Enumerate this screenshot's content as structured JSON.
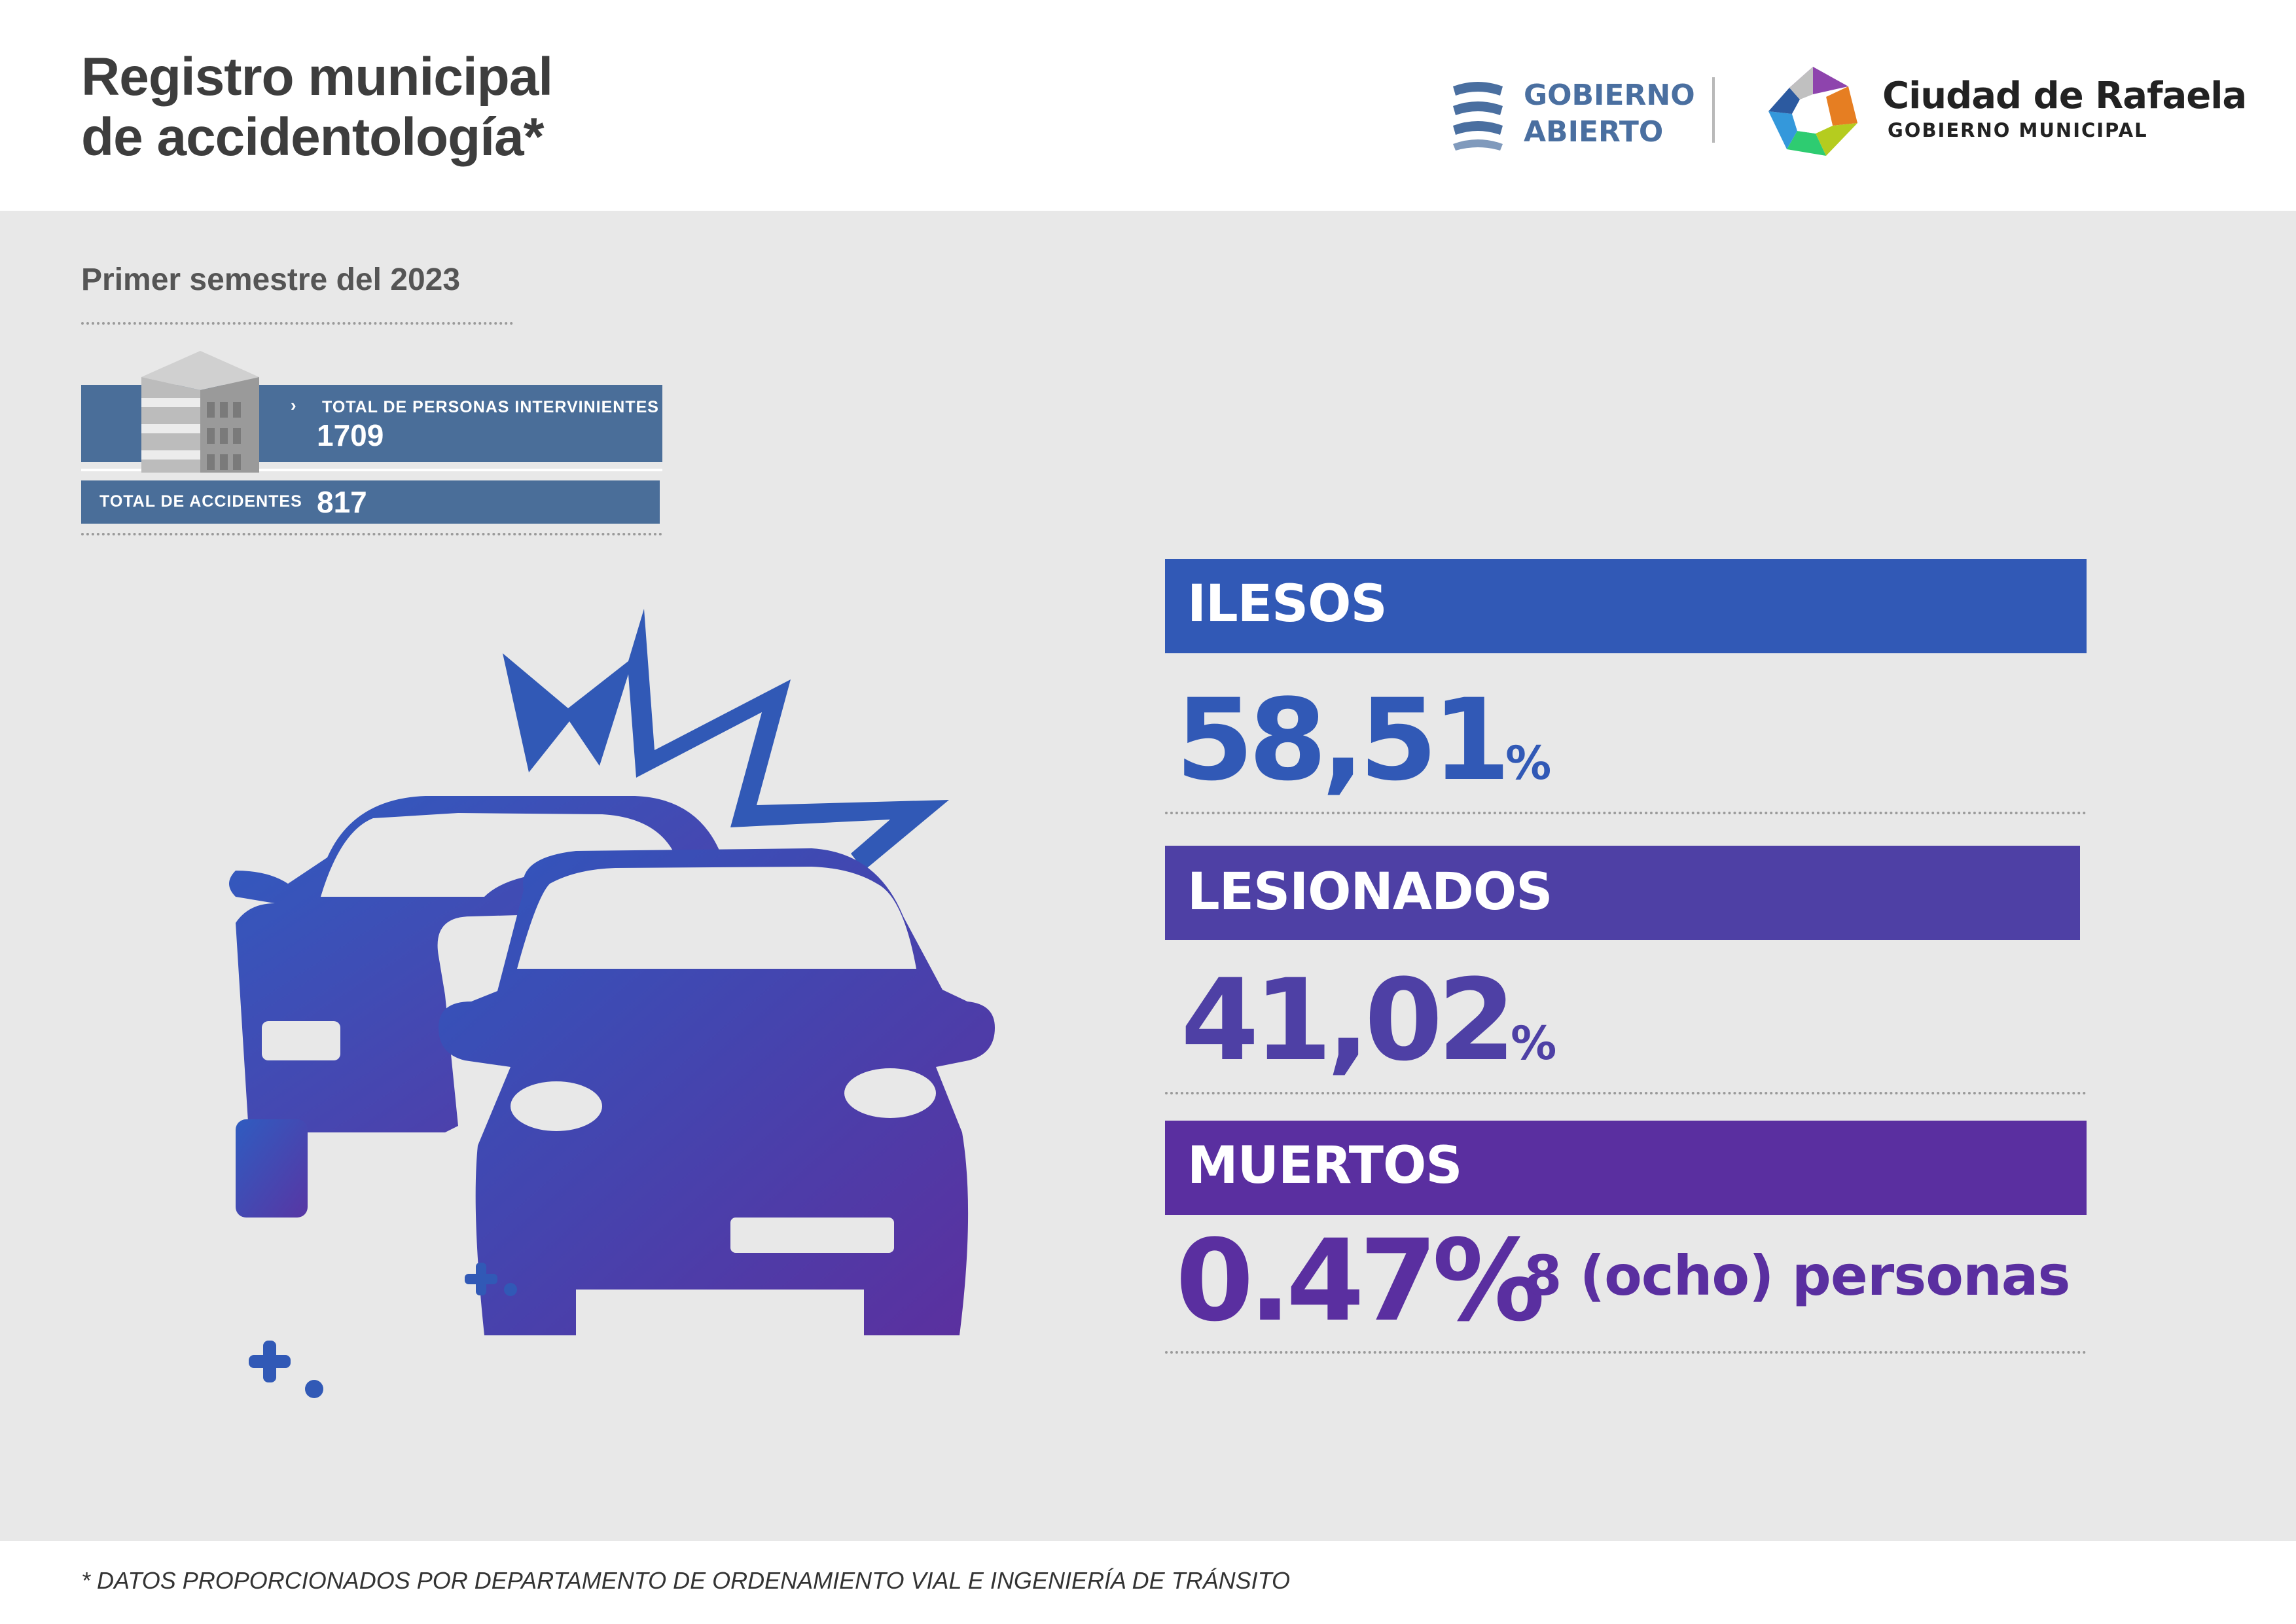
{
  "header": {
    "title_line1": "Registro municipal",
    "title_line2": "de accidentología*",
    "gobierno_abierto_line1": "GOBIERNO",
    "gobierno_abierto_line2": "ABIERTO",
    "ciudad_name": "Ciudad de Rafaela",
    "ciudad_sub": "GOBIERNO MUNICIPAL"
  },
  "period": "Primer semestre del 2023",
  "totals": {
    "personas_label": "TOTAL DE PERSONAS INTERVINIENTES",
    "personas_value": "1709",
    "accidentes_label": "TOTAL DE ACCIDENTES",
    "accidentes_value": "817"
  },
  "categories": [
    {
      "label": "ILESOS",
      "value": "58,51",
      "sign": "%",
      "color": "#3159b6"
    },
    {
      "label": "LESIONADOS",
      "value": "41,02",
      "sign": "%",
      "color": "#4e40a5"
    },
    {
      "label": "MUERTOS",
      "value": "0.47%",
      "note": "8 (ocho) personas",
      "color": "#5a2fa0"
    }
  ],
  "footnote": "* DATOS PROPORCIONADOS POR DEPARTAMENTO DE ORDENAMIENTO VIAL E INGENIERÍA DE TRÁNSITO",
  "icons": [
    "building-icon",
    "car-crash-icon",
    "gobierno-abierto-logo",
    "ciudad-rafaela-logo"
  ]
}
